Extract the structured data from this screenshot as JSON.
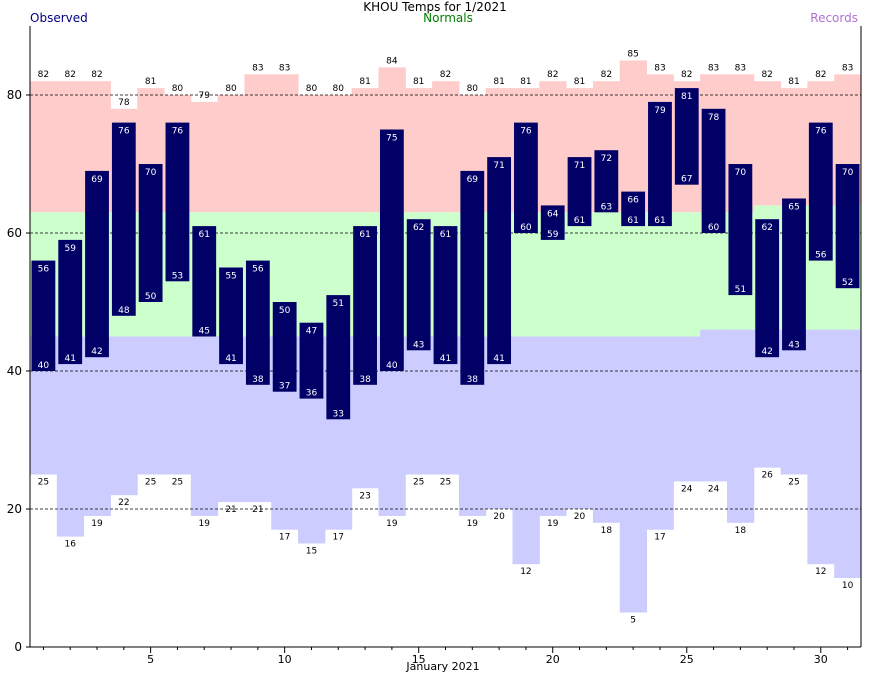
{
  "chart_data": {
    "type": "bar",
    "title": "KHOU Temps for 1/2021",
    "xlabel": "January 2021",
    "legend": {
      "observed": "Observed",
      "normals": "Normals",
      "records": "Records"
    },
    "days": [
      1,
      2,
      3,
      4,
      5,
      6,
      7,
      8,
      9,
      10,
      11,
      12,
      13,
      14,
      15,
      16,
      17,
      18,
      19,
      20,
      21,
      22,
      23,
      24,
      25,
      26,
      27,
      28,
      29,
      30,
      31
    ],
    "xticks": [
      5,
      10,
      15,
      20,
      25,
      30
    ],
    "yticks": [
      0,
      20,
      40,
      60,
      80
    ],
    "ylim": [
      0,
      90
    ],
    "observed_high": [
      56,
      59,
      69,
      76,
      70,
      76,
      61,
      55,
      56,
      50,
      47,
      51,
      61,
      75,
      62,
      61,
      69,
      71,
      76,
      64,
      71,
      72,
      66,
      79,
      81,
      78,
      70,
      62,
      65,
      76,
      70
    ],
    "observed_low": [
      40,
      41,
      42,
      48,
      50,
      53,
      45,
      41,
      38,
      37,
      36,
      33,
      38,
      40,
      43,
      41,
      38,
      41,
      60,
      59,
      61,
      63,
      61,
      61,
      67,
      60,
      51,
      42,
      43,
      56,
      52
    ],
    "record_high": [
      82,
      82,
      82,
      78,
      81,
      80,
      79,
      80,
      83,
      83,
      80,
      80,
      81,
      84,
      81,
      82,
      80,
      81,
      81,
      82,
      81,
      82,
      85,
      83,
      82,
      83,
      83,
      82,
      81,
      82,
      83
    ],
    "record_low": [
      25,
      16,
      19,
      22,
      25,
      25,
      19,
      21,
      21,
      17,
      15,
      17,
      23,
      19,
      25,
      25,
      19,
      20,
      12,
      19,
      20,
      18,
      5,
      17,
      24,
      24,
      18,
      26,
      25,
      12,
      10
    ],
    "normal_high": [
      63,
      63,
      63,
      63,
      63,
      63,
      63,
      63,
      63,
      63,
      63,
      63,
      63,
      63,
      63,
      63,
      63,
      63,
      63,
      63,
      63,
      63,
      63,
      63,
      63,
      63,
      63,
      64,
      64,
      64,
      64
    ],
    "normal_low": [
      45,
      45,
      45,
      45,
      45,
      45,
      45,
      45,
      45,
      45,
      45,
      45,
      45,
      45,
      45,
      45,
      45,
      45,
      45,
      45,
      45,
      45,
      45,
      45,
      45,
      46,
      46,
      46,
      46,
      46,
      46
    ],
    "colors": {
      "record_high_fill": "#ffcccc",
      "normal_fill": "#ccffcc",
      "record_low_fill": "#ccccff",
      "observed_fill": "#000066",
      "observed_text": "#ffffff",
      "grid": "#000000"
    }
  }
}
